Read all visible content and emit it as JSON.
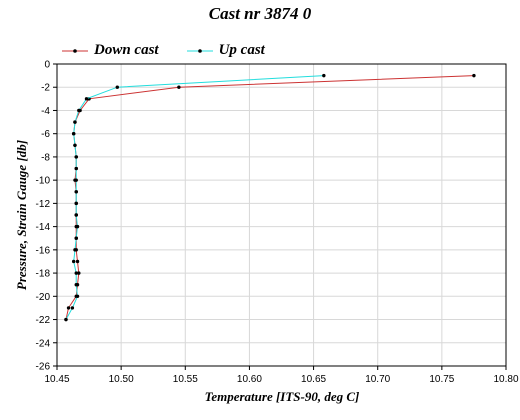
{
  "chart_data": {
    "type": "line",
    "title": "Cast nr 3874 0",
    "xlabel": "Temperature [ITS-90, deg C]",
    "ylabel": "Pressure, Strain Gauge [db]",
    "xlim": [
      10.45,
      10.8
    ],
    "ylim": [
      -26,
      0
    ],
    "xticks": [
      "10.45",
      "10.50",
      "10.55",
      "10.60",
      "10.65",
      "10.70",
      "10.75",
      "10.80"
    ],
    "yticks": [
      "0",
      "-2",
      "-4",
      "-6",
      "-8",
      "-10",
      "-12",
      "-14",
      "-16",
      "-18",
      "-20",
      "-22",
      "-24",
      "-26"
    ],
    "grid": true,
    "legend_position": "top-left",
    "series": [
      {
        "name": "Down cast",
        "color": "#cc3333",
        "points": [
          [
            10.775,
            -1
          ],
          [
            10.545,
            -2
          ],
          [
            10.475,
            -3
          ],
          [
            10.468,
            -4
          ],
          [
            10.464,
            -5
          ],
          [
            10.463,
            -6
          ],
          [
            10.464,
            -7
          ],
          [
            10.465,
            -8
          ],
          [
            10.465,
            -9
          ],
          [
            10.464,
            -10
          ],
          [
            10.465,
            -11
          ],
          [
            10.465,
            -12
          ],
          [
            10.465,
            -13
          ],
          [
            10.465,
            -14
          ],
          [
            10.465,
            -15
          ],
          [
            10.465,
            -16
          ],
          [
            10.466,
            -17
          ],
          [
            10.467,
            -18
          ],
          [
            10.466,
            -19
          ],
          [
            10.465,
            -20
          ],
          [
            10.459,
            -21
          ],
          [
            10.457,
            -22
          ]
        ]
      },
      {
        "name": "Up cast",
        "color": "#22dddd",
        "points": [
          [
            10.658,
            -1
          ],
          [
            10.497,
            -2
          ],
          [
            10.473,
            -3
          ],
          [
            10.467,
            -4
          ],
          [
            10.464,
            -5
          ],
          [
            10.463,
            -6
          ],
          [
            10.464,
            -7
          ],
          [
            10.465,
            -8
          ],
          [
            10.465,
            -9
          ],
          [
            10.465,
            -10
          ],
          [
            10.465,
            -11
          ],
          [
            10.465,
            -12
          ],
          [
            10.465,
            -13
          ],
          [
            10.466,
            -14
          ],
          [
            10.465,
            -15
          ],
          [
            10.464,
            -16
          ],
          [
            10.463,
            -17
          ],
          [
            10.465,
            -18
          ],
          [
            10.465,
            -19
          ],
          [
            10.466,
            -20
          ],
          [
            10.462,
            -21
          ],
          [
            10.457,
            -22
          ]
        ]
      }
    ]
  }
}
